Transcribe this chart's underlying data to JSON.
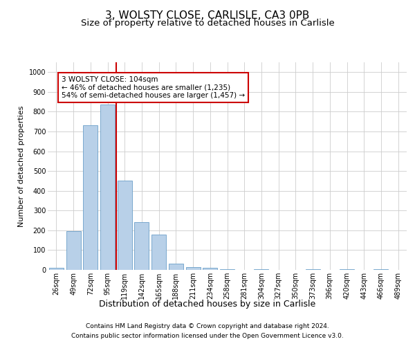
{
  "title1": "3, WOLSTY CLOSE, CARLISLE, CA3 0PB",
  "title2": "Size of property relative to detached houses in Carlisle",
  "xlabel": "Distribution of detached houses by size in Carlisle",
  "ylabel": "Number of detached properties",
  "categories": [
    "26sqm",
    "49sqm",
    "72sqm",
    "95sqm",
    "119sqm",
    "142sqm",
    "165sqm",
    "188sqm",
    "211sqm",
    "234sqm",
    "258sqm",
    "281sqm",
    "304sqm",
    "327sqm",
    "350sqm",
    "373sqm",
    "396sqm",
    "420sqm",
    "443sqm",
    "466sqm",
    "489sqm"
  ],
  "values": [
    10,
    195,
    730,
    835,
    450,
    240,
    180,
    30,
    15,
    12,
    5,
    0,
    5,
    0,
    0,
    5,
    0,
    5,
    0,
    5,
    0
  ],
  "bar_color": "#b8d0e8",
  "bar_edge_color": "#6a9fc8",
  "vline_x_index": 3.5,
  "vline_color": "#cc0000",
  "annotation_text": "3 WOLSTY CLOSE: 104sqm\n← 46% of detached houses are smaller (1,235)\n54% of semi-detached houses are larger (1,457) →",
  "annotation_box_color": "#ffffff",
  "annotation_box_edge": "#cc0000",
  "ylim": [
    0,
    1050
  ],
  "yticks": [
    0,
    100,
    200,
    300,
    400,
    500,
    600,
    700,
    800,
    900,
    1000
  ],
  "grid_color": "#cccccc",
  "background_color": "#ffffff",
  "footer1": "Contains HM Land Registry data © Crown copyright and database right 2024.",
  "footer2": "Contains public sector information licensed under the Open Government Licence v3.0.",
  "title1_fontsize": 11,
  "title2_fontsize": 9.5,
  "xlabel_fontsize": 9,
  "ylabel_fontsize": 8,
  "tick_fontsize": 7,
  "annotation_fontsize": 7.5,
  "footer_fontsize": 6.5
}
